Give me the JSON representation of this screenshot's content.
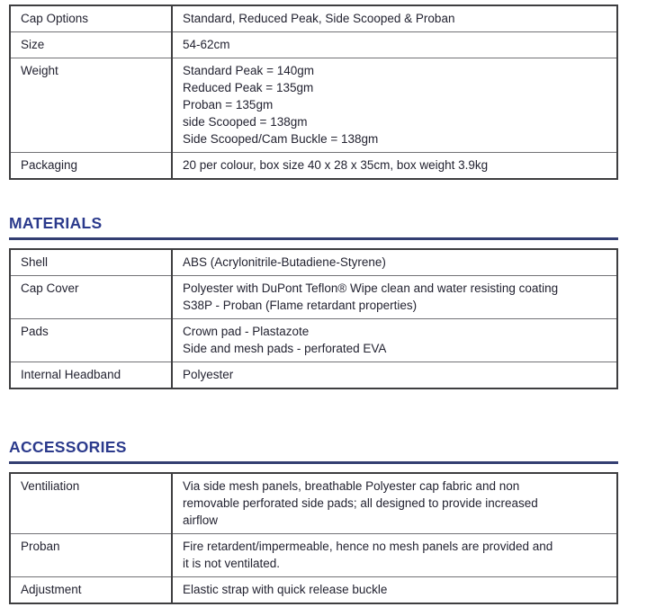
{
  "colors": {
    "heading": "#2b3a8c",
    "rule": "#333e72",
    "text": "#232331",
    "border_outer": "#3e3e40",
    "border_inner": "#727276"
  },
  "spec_table": {
    "rows": [
      {
        "label": "Cap Options",
        "lines": [
          "Standard, Reduced Peak, Side Scooped & Proban"
        ]
      },
      {
        "label": "Size",
        "lines": [
          "54-62cm"
        ]
      },
      {
        "label": "Weight",
        "lines": [
          "Standard Peak = 140gm",
          "Reduced Peak = 135gm",
          "Proban = 135gm",
          "side Scooped = 138gm",
          "Side Scooped/Cam Buckle = 138gm"
        ]
      },
      {
        "label": "Packaging",
        "lines": [
          "20 per colour, box size 40 x 28 x 35cm, box weight 3.9kg"
        ]
      }
    ]
  },
  "materials": {
    "title": "MATERIALS",
    "rows": [
      {
        "label": "Shell",
        "lines": [
          "ABS (Acrylonitrile-Butadiene-Styrene)"
        ]
      },
      {
        "label": "Cap Cover",
        "lines": [
          "Polyester with DuPont Teflon® Wipe clean and water resisting coating",
          "S38P - Proban (Flame retardant properties)"
        ]
      },
      {
        "label": "Pads",
        "lines": [
          "Crown pad - Plastazote",
          "Side and mesh pads - perforated EVA"
        ]
      },
      {
        "label": "Internal Headband",
        "lines": [
          "Polyester"
        ]
      }
    ]
  },
  "accessories": {
    "title": "ACCESSORIES",
    "rows": [
      {
        "label": "Ventiliation",
        "lines": [
          "Via side mesh panels, breathable Polyester cap fabric and non",
          "removable perforated side pads; all designed to provide increased",
          "airflow"
        ]
      },
      {
        "label": "Proban",
        "lines": [
          "Fire retardent/impermeable, hence no mesh panels are provided and",
          "it is not ventilated."
        ]
      },
      {
        "label": "Adjustment",
        "lines": [
          "Elastic strap with quick release buckle"
        ]
      }
    ]
  }
}
